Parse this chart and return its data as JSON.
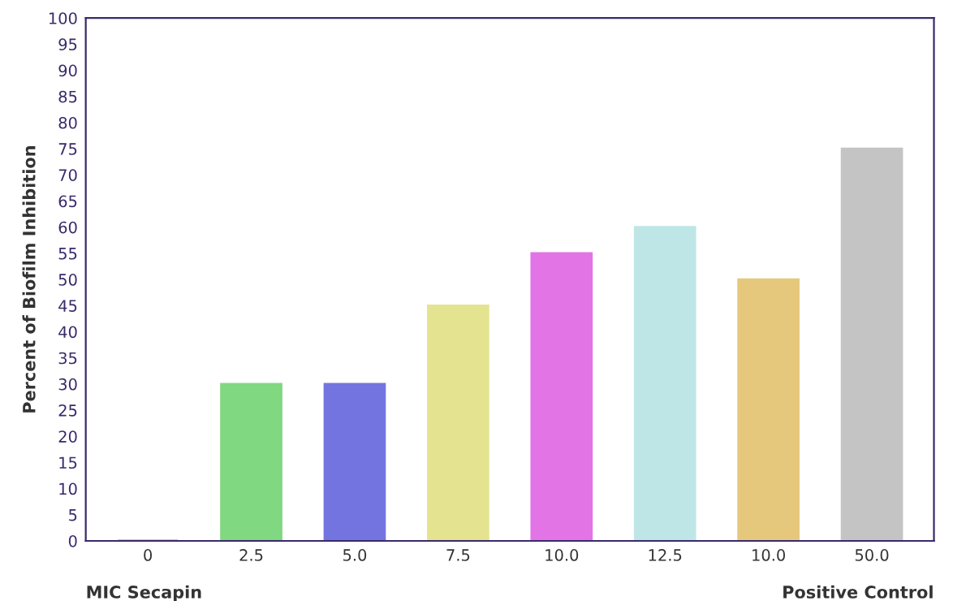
{
  "chart_data": {
    "type": "bar",
    "ylabel": "Percent of Biofilm Inhibition",
    "categories": [
      "0",
      "2.5",
      "5.0",
      "7.5",
      "10.0",
      "12.5",
      "10.0",
      "50.0"
    ],
    "values": [
      0,
      30,
      30,
      45,
      55,
      60,
      50,
      75
    ],
    "colors": [
      "#f06464",
      "#80d880",
      "#7474e0",
      "#e4e490",
      "#e274e6",
      "#bfe6e6",
      "#e6c87c",
      "#c4c4c4"
    ],
    "ylim": [
      0,
      100
    ],
    "yticks": [
      0,
      5,
      10,
      15,
      20,
      25,
      30,
      35,
      40,
      45,
      50,
      55,
      60,
      65,
      70,
      75,
      80,
      85,
      90,
      95,
      100
    ],
    "grid": false,
    "annotations": [
      "MIC Secapin",
      "Positive Control"
    ]
  }
}
